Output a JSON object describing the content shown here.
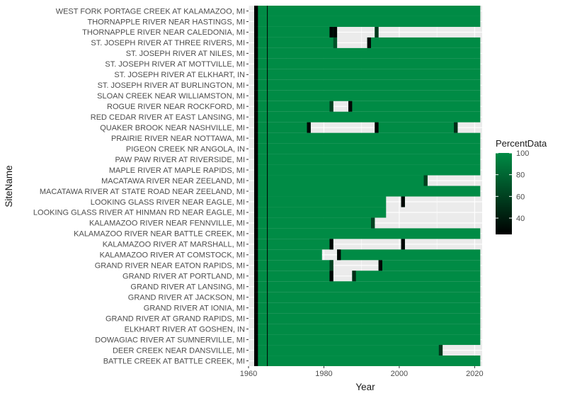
{
  "chart_data": {
    "type": "heatmap",
    "xlabel": "Year",
    "ylabel": "SiteName",
    "xlim": [
      1960,
      2022
    ],
    "x_ticks": [
      "1960",
      "1980",
      "2000",
      "2020"
    ],
    "x_tick_values": [
      1960,
      1980,
      2000,
      2020
    ],
    "x_start": 1962,
    "x_end": 2021,
    "reference_line_x": 1965,
    "legend": {
      "title": "PercentData",
      "position": "right",
      "range": [
        25,
        100
      ],
      "ticks": [
        "100",
        "80",
        "60",
        "40"
      ],
      "tick_values": [
        100,
        80,
        60,
        40
      ],
      "colors": {
        "low": "#000000",
        "high": "#008B45"
      }
    },
    "missing_color": "#EBEBEB",
    "sites": [
      {
        "name": "WEST FORK PORTAGE CREEK AT KALAMAZOO, MI",
        "gaps": []
      },
      {
        "name": "THORNAPPLE RIVER NEAR HASTINGS, MI",
        "gaps": []
      },
      {
        "name": "THORNAPPLE RIVER NEAR CALEDONIA, MI",
        "gaps": [
          [
            1984,
            1993
          ],
          [
            1995,
            2021
          ]
        ]
      },
      {
        "name": "ST. JOSEPH RIVER AT THREE RIVERS, MI",
        "gaps": [
          [
            1984,
            1991
          ]
        ]
      },
      {
        "name": "ST. JOSEPH RIVER AT NILES, MI",
        "gaps": []
      },
      {
        "name": "ST. JOSEPH RIVER AT MOTTVILLE, MI",
        "gaps": []
      },
      {
        "name": "ST. JOSEPH RIVER AT ELKHART, IN",
        "gaps": []
      },
      {
        "name": "ST. JOSEPH RIVER AT BURLINGTON, MI",
        "gaps": []
      },
      {
        "name": "SLOAN CREEK NEAR WILLIAMSTON, MI",
        "gaps": []
      },
      {
        "name": "ROGUE RIVER NEAR ROCKFORD, MI",
        "gaps": [
          [
            1983,
            1986
          ]
        ]
      },
      {
        "name": "RED CEDAR RIVER AT EAST LANSING, MI",
        "gaps": []
      },
      {
        "name": "QUAKER BROOK NEAR NASHVILLE, MI",
        "gaps": [
          [
            1977,
            1993
          ],
          [
            2016,
            2021
          ]
        ]
      },
      {
        "name": "PRAIRIE RIVER NEAR NOTTAWA, MI",
        "gaps": []
      },
      {
        "name": "PIGEON CREEK NR ANGOLA, IN",
        "gaps": []
      },
      {
        "name": "PAW PAW RIVER AT RIVERSIDE, MI",
        "gaps": []
      },
      {
        "name": "MAPLE RIVER AT MAPLE RAPIDS, MI",
        "gaps": []
      },
      {
        "name": "MACATAWA RIVER NEAR ZEELAND, MI",
        "gaps": [
          [
            2008,
            2021
          ]
        ]
      },
      {
        "name": "MACATAWA RIVER AT STATE ROAD NEAR ZEELAND, MI",
        "gaps": []
      },
      {
        "name": "LOOKING GLASS RIVER NEAR EAGLE, MI",
        "gaps": [
          [
            1997,
            2000
          ],
          [
            2002,
            2021
          ]
        ]
      },
      {
        "name": "LOOKING GLASS RIVER AT HINMAN RD NEAR EAGLE, MI",
        "gaps": [
          [
            1997,
            2021
          ]
        ]
      },
      {
        "name": "KALAMAZOO RIVER NEAR FENNVILLE, MI",
        "gaps": [
          [
            1994,
            2021
          ]
        ]
      },
      {
        "name": "KALAMAZOO RIVER NEAR BATTLE CREEK, MI",
        "gaps": []
      },
      {
        "name": "KALAMAZOO RIVER AT MARSHALL, MI",
        "gaps": [
          [
            1983,
            2000
          ],
          [
            2002,
            2021
          ]
        ]
      },
      {
        "name": "KALAMAZOO RIVER AT COMSTOCK, MI",
        "gaps": [
          [
            1980,
            1983
          ]
        ]
      },
      {
        "name": "GRAND RIVER NEAR EATON RAPIDS, MI",
        "gaps": [
          [
            1983,
            1994
          ]
        ]
      },
      {
        "name": "GRAND RIVER AT PORTLAND, MI",
        "gaps": [
          [
            1983,
            1987
          ]
        ]
      },
      {
        "name": "GRAND RIVER AT LANSING, MI",
        "gaps": []
      },
      {
        "name": "GRAND RIVER AT JACKSON, MI",
        "gaps": []
      },
      {
        "name": "GRAND RIVER AT IONIA, MI",
        "gaps": []
      },
      {
        "name": "GRAND RIVER AT GRAND RAPIDS, MI",
        "gaps": []
      },
      {
        "name": "ELKHART RIVER AT GOSHEN, IN",
        "gaps": []
      },
      {
        "name": "DOWAGIAC RIVER AT SUMNERVILLE, MI",
        "gaps": []
      },
      {
        "name": "DEER CREEK NEAR DANSVILLE, MI",
        "gaps": [
          [
            2012,
            2021
          ]
        ]
      },
      {
        "name": "BATTLE CREEK AT BATTLE CREEK, MI",
        "gaps": []
      }
    ],
    "low_cells": [
      {
        "site": 2,
        "year": 1982,
        "value": 28
      },
      {
        "site": 2,
        "year": 1983,
        "value": 28
      },
      {
        "site": 2,
        "year": 1994,
        "value": 55
      },
      {
        "site": 3,
        "year": 1983,
        "value": 70
      },
      {
        "site": 3,
        "year": 1992,
        "value": 30
      },
      {
        "site": 9,
        "year": 1982,
        "value": 60
      },
      {
        "site": 9,
        "year": 1987,
        "value": 28
      },
      {
        "site": 11,
        "year": 1976,
        "value": 30
      },
      {
        "site": 11,
        "year": 1994,
        "value": 28
      },
      {
        "site": 11,
        "year": 2015,
        "value": 50
      },
      {
        "site": 16,
        "year": 2007,
        "value": 60
      },
      {
        "site": 18,
        "year": 2001,
        "value": 28
      },
      {
        "site": 20,
        "year": 1993,
        "value": 60
      },
      {
        "site": 22,
        "year": 1982,
        "value": 28
      },
      {
        "site": 22,
        "year": 2001,
        "value": 28
      },
      {
        "site": 23,
        "year": 1984,
        "value": 28
      },
      {
        "site": 24,
        "year": 1982,
        "value": 60
      },
      {
        "site": 24,
        "year": 1995,
        "value": 28
      },
      {
        "site": 25,
        "year": 1982,
        "value": 28
      },
      {
        "site": 25,
        "year": 1988,
        "value": 50
      },
      {
        "site": 32,
        "year": 2011,
        "value": 55
      }
    ]
  }
}
